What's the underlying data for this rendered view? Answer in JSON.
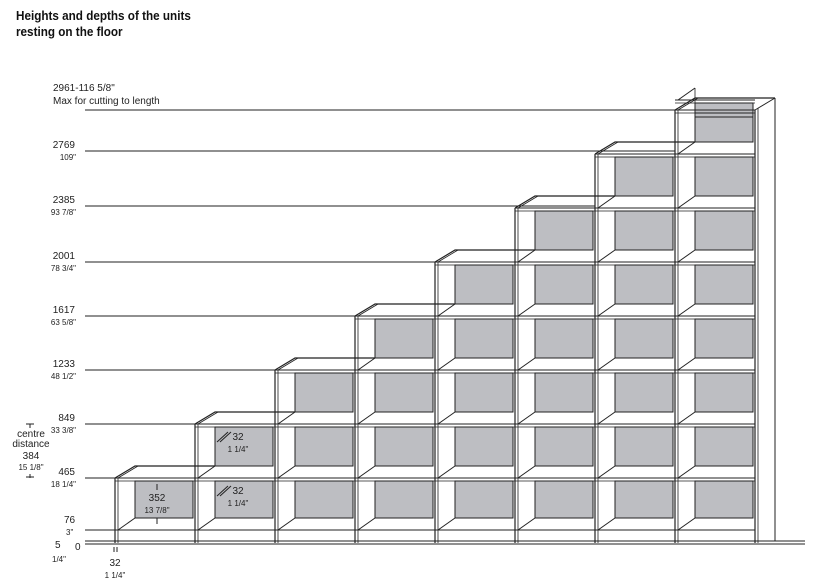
{
  "title_line1": "Heights and depths of the units",
  "title_line2": "resting on the floor",
  "levels": [
    {
      "mm": "2961-116 5/8\"",
      "sub": "Max for cutting to length"
    },
    {
      "mm": "2769",
      "sub": "109\""
    },
    {
      "mm": "2385",
      "sub": "93 7/8\""
    },
    {
      "mm": "2001",
      "sub": "78 3/4\""
    },
    {
      "mm": "1617",
      "sub": "63 5/8\""
    },
    {
      "mm": "1233",
      "sub": "48 1/2\""
    },
    {
      "mm": "849",
      "sub": "33 3/8\""
    },
    {
      "mm": "465",
      "sub": "18 1/4\""
    },
    {
      "mm": "76",
      "sub": "3\""
    }
  ],
  "floor": {
    "left": "5",
    "left_sub": "1/4\"",
    "zero": "0"
  },
  "centre_distance": {
    "label1": "centre",
    "label2": "distance",
    "mm": "384",
    "inch": "15 1/8\""
  },
  "dims": {
    "depth_mm": "352",
    "depth_in": "13 7/8\"",
    "panel_mm": "32",
    "panel_in": "1 1/4\"",
    "side_mm": "32",
    "side_in": "1 1/4\""
  },
  "colors": {
    "panel": "#bdbec2",
    "line": "#222222"
  },
  "units_count": 8
}
